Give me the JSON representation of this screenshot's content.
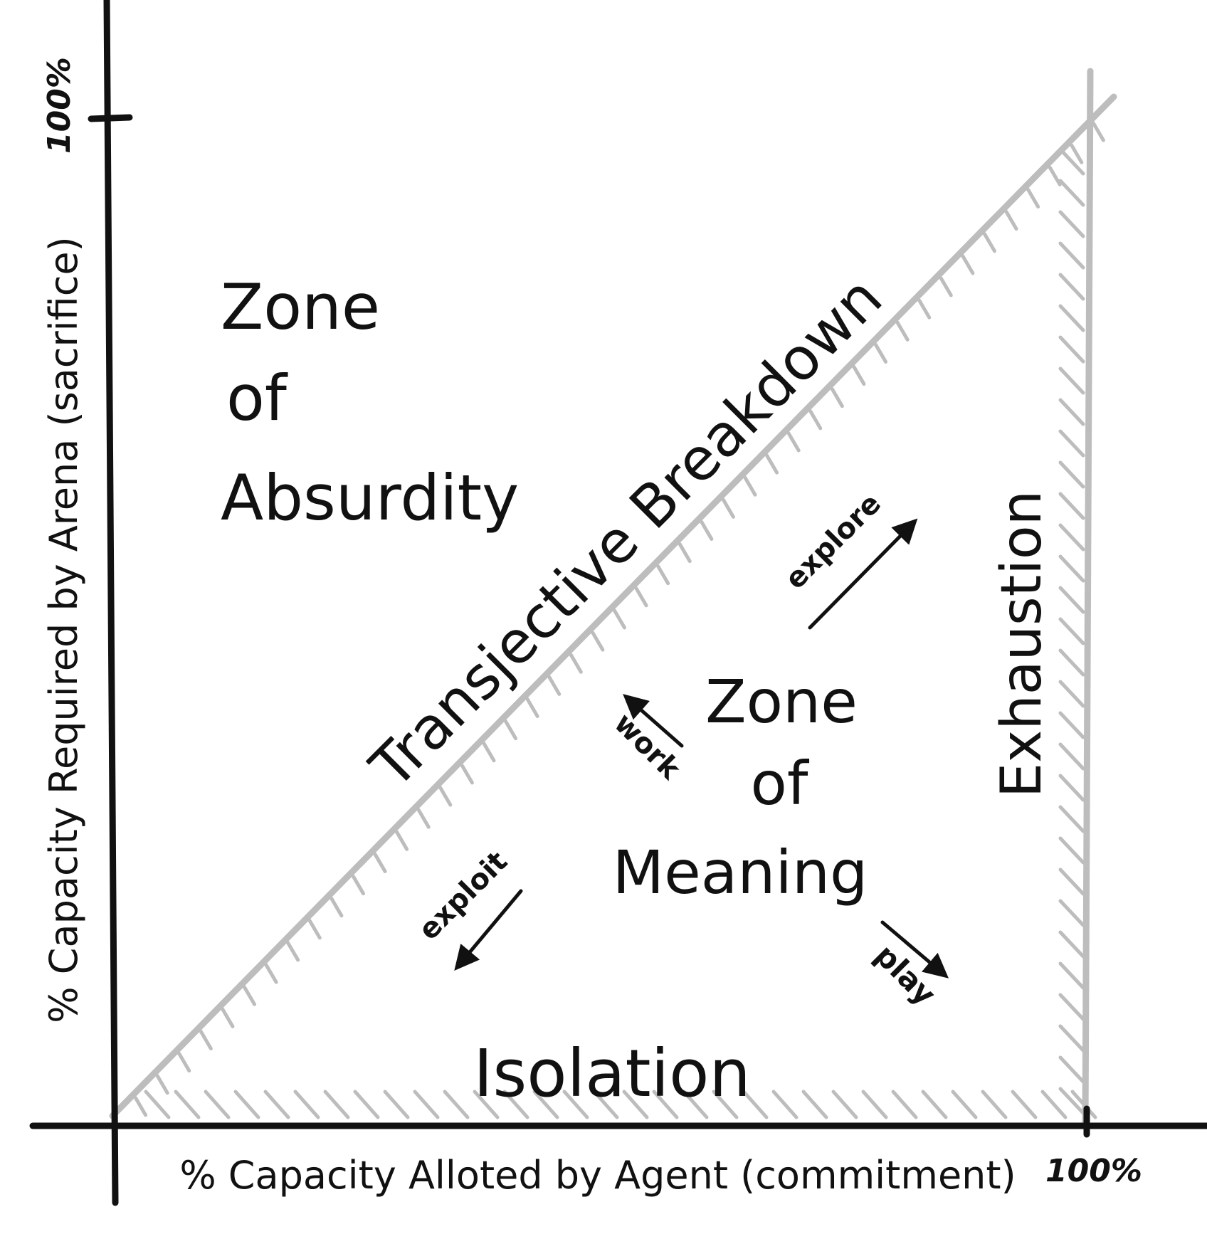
{
  "axes": {
    "x_label": "% Capacity Alloted by Agent (commitment)",
    "y_label": "% Capacity Required by Arena (sacrifice)",
    "x_max_label": "100%",
    "y_max_label": "100%"
  },
  "zones": {
    "absurdity": [
      "Zone",
      "of",
      "Absurdity"
    ],
    "meaning": [
      "Zone",
      "of",
      "Meaning"
    ]
  },
  "boundaries": {
    "diagonal": "Transjective Breakdown",
    "right": "Exhaustion",
    "bottom": "Isolation"
  },
  "arrows": {
    "explore": "explore",
    "work": "work",
    "exploit": "exploit",
    "play": "play"
  },
  "colors": {
    "ink": "#111111",
    "boundary": "#bdbdbd"
  }
}
